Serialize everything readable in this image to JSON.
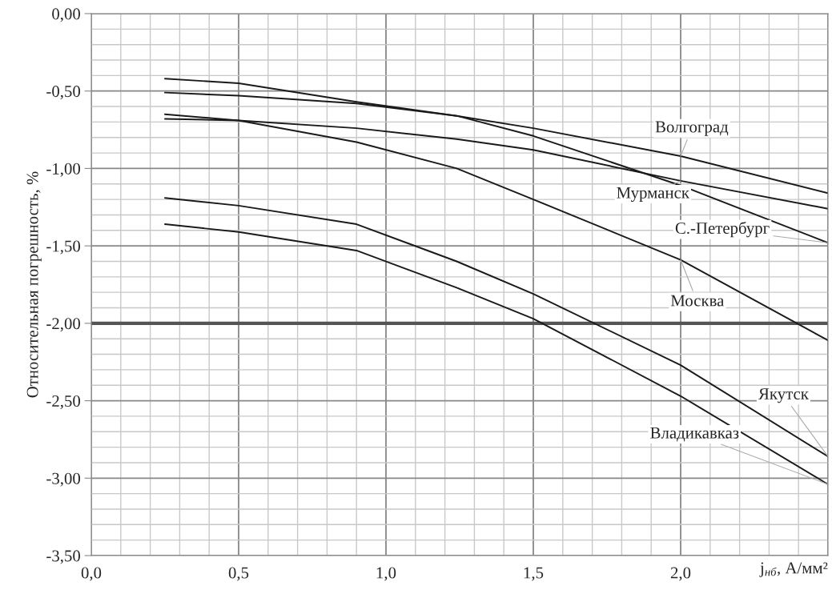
{
  "chart_data": {
    "type": "line",
    "xlabel": "j$_{нб}$, А/мм²",
    "ylabel": "Относительная погрешность, %",
    "xlim": [
      0,
      2.5
    ],
    "ylim": [
      -3.5,
      0
    ],
    "xticks": [
      {
        "value": 0,
        "label": "0,0"
      },
      {
        "value": 0.5,
        "label": "0,5"
      },
      {
        "value": 1.0,
        "label": "1,0"
      },
      {
        "value": 1.5,
        "label": "1,5"
      },
      {
        "value": 2.0,
        "label": "2,0"
      },
      {
        "value": 2.5,
        "label": null
      }
    ],
    "yticks": [
      {
        "value": 0,
        "label": "0,00"
      },
      {
        "value": -0.5,
        "label": "-0,50"
      },
      {
        "value": -1.0,
        "label": "-1,00"
      },
      {
        "value": -1.5,
        "label": "-1,50"
      },
      {
        "value": -2.0,
        "label": "-2,00"
      },
      {
        "value": -2.5,
        "label": "-2,50"
      },
      {
        "value": -3.0,
        "label": "-3,00"
      },
      {
        "value": -3.5,
        "label": "-3,50"
      }
    ],
    "grid": true,
    "marker": "none",
    "line_style": "solid",
    "legend": false,
    "x": [
      0.25,
      0.5,
      0.9,
      1.24,
      1.5,
      2.0,
      2.5
    ],
    "series": [
      {
        "name": "Волгоград",
        "color": "#1a1a1a",
        "values": [
          -0.42,
          -0.45,
          -0.57,
          -0.66,
          -0.74,
          -0.92,
          -1.16
        ]
      },
      {
        "name": "Мурманск",
        "color": "#1a1a1a",
        "values": [
          -0.68,
          -0.69,
          -0.74,
          -0.81,
          -0.88,
          -1.08,
          -1.26
        ]
      },
      {
        "name": "С.-Петербург",
        "color": "#1a1a1a",
        "values": [
          -0.51,
          -0.53,
          -0.58,
          -0.66,
          -0.79,
          -1.11,
          -1.48
        ]
      },
      {
        "name": "Москва",
        "color": "#1a1a1a",
        "values": [
          -0.65,
          -0.69,
          -0.83,
          -1.0,
          -1.2,
          -1.59,
          -2.11
        ]
      },
      {
        "name": "Якутск",
        "color": "#1a1a1a",
        "values": [
          -1.19,
          -1.24,
          -1.36,
          -1.6,
          -1.81,
          -2.27,
          -2.86
        ]
      },
      {
        "name": "Владикавказ",
        "color": "#1a1a1a",
        "values": [
          -1.36,
          -1.41,
          -1.53,
          -1.77,
          -1.97,
          -2.47,
          -3.04
        ]
      }
    ],
    "ref_lines": [
      {
        "axis": "y",
        "value": -2.0,
        "color": "#555555"
      }
    ]
  }
}
